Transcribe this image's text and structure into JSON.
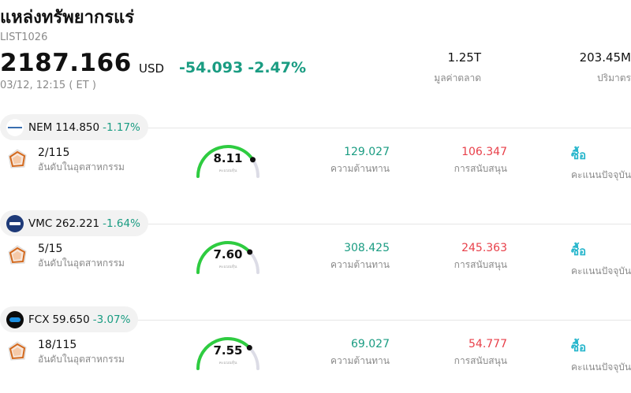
{
  "header": {
    "title": "แหล่งทรัพยากรแร่",
    "code": "LIST1026",
    "price": "2187.166",
    "currency": "USD",
    "change": "-54.093",
    "change_pct": "-2.47%",
    "datetime": "03/12, 12:15  ( ET )",
    "market_cap_value": "1.25T",
    "market_cap_label": "มูลค่าตลาด",
    "volume_value": "203.45M",
    "volume_label": "ปริมาตร"
  },
  "colors": {
    "positive_green": "#1a9c82",
    "support_red": "#e8404a",
    "rating_cyan": "#27b6cc",
    "gauge_green": "#2ecc40",
    "gauge_track": "#dcdce6"
  },
  "stocks": [
    {
      "symbol": "NEM",
      "price": "114.850",
      "change_pct": "-1.17%",
      "logo_icon": "nem-logo-icon",
      "rank": "2/115",
      "rank_label": "อันดับในอุตสาหกรรม",
      "score": "8.11",
      "score_fraction": 0.811,
      "score_label": "คะแนนหุ้น",
      "resistance": "129.027",
      "resistance_label": "ความต้านทาน",
      "support": "106.347",
      "support_label": "การสนับสนุน",
      "rating": "ซื้อ",
      "rating_label": "คะแนนปัจจุบัน"
    },
    {
      "symbol": "VMC",
      "price": "262.221",
      "change_pct": "-1.64%",
      "logo_icon": "vmc-logo-icon",
      "rank": "5/15",
      "rank_label": "อันดับในอุตสาหกรรม",
      "score": "7.60",
      "score_fraction": 0.76,
      "score_label": "คะแนนหุ้น",
      "resistance": "308.425",
      "resistance_label": "ความต้านทาน",
      "support": "245.363",
      "support_label": "การสนับสนุน",
      "rating": "ซื้อ",
      "rating_label": "คะแนนปัจจุบัน"
    },
    {
      "symbol": "FCX",
      "price": "59.650",
      "change_pct": "-3.07%",
      "logo_icon": "fcx-logo-icon",
      "rank": "18/115",
      "rank_label": "อันดับในอุตสาหกรรม",
      "score": "7.55",
      "score_fraction": 0.755,
      "score_label": "คะแนนหุ้น",
      "resistance": "69.027",
      "resistance_label": "ความต้านทาน",
      "support": "54.777",
      "support_label": "การสนับสนุน",
      "rating": "ซื้อ",
      "rating_label": "คะแนนปัจจุบัน"
    }
  ]
}
